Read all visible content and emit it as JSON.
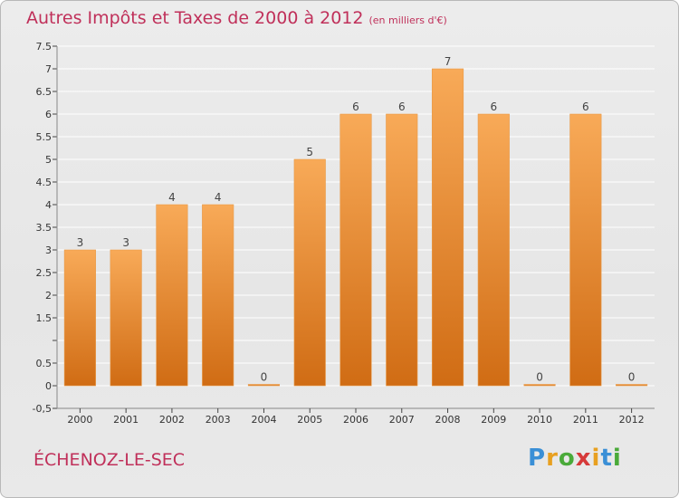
{
  "header": {
    "title": "Autres Impôts et Taxes de 2000 à 2012",
    "unit": "(en milliers d'€)"
  },
  "footer": {
    "city": "ÉCHENOZ-LE-SEC",
    "logo": "Proxiti",
    "logo_colors": [
      "#3a8fd6",
      "#e8a020",
      "#4aaa3a",
      "#d63a3a",
      "#e8a020",
      "#3a8fd6",
      "#4aaa3a"
    ]
  },
  "colors": {
    "bar_light": "#f8aa58",
    "bar_dark": "#d06c14",
    "title": "#c0305a",
    "grid": "#ffffff"
  },
  "chart_data": {
    "type": "bar",
    "title": "Autres Impôts et Taxes de 2000 à 2012",
    "subtitle": "(en milliers d'€)",
    "categories": [
      "2000",
      "2001",
      "2002",
      "2003",
      "2004",
      "2005",
      "2006",
      "2007",
      "2008",
      "2009",
      "2010",
      "2011",
      "2012"
    ],
    "values": [
      3,
      3,
      4,
      4,
      0,
      5,
      6,
      6,
      7,
      6,
      0,
      6,
      0
    ],
    "data_labels": [
      "3",
      "3",
      "4",
      "4",
      "0",
      "5",
      "6",
      "6",
      "7",
      "6",
      "0",
      "6",
      "0"
    ],
    "ylim": [
      -0.5,
      7.5
    ],
    "yticks": [
      -0.5,
      0,
      0.5,
      1,
      1.5,
      2,
      2.5,
      3,
      3.5,
      4,
      4.5,
      5,
      5.5,
      6,
      6.5,
      7,
      7.5
    ],
    "ytick_labels": [
      "-0,5",
      "0",
      "0.5",
      "",
      "1.5",
      "2",
      "2.5",
      "3",
      "3.5",
      "4",
      "4.5",
      "5",
      "5.5",
      "6",
      "6.5",
      "7",
      "7.5"
    ],
    "grid": true,
    "xlabel": "",
    "ylabel": ""
  }
}
